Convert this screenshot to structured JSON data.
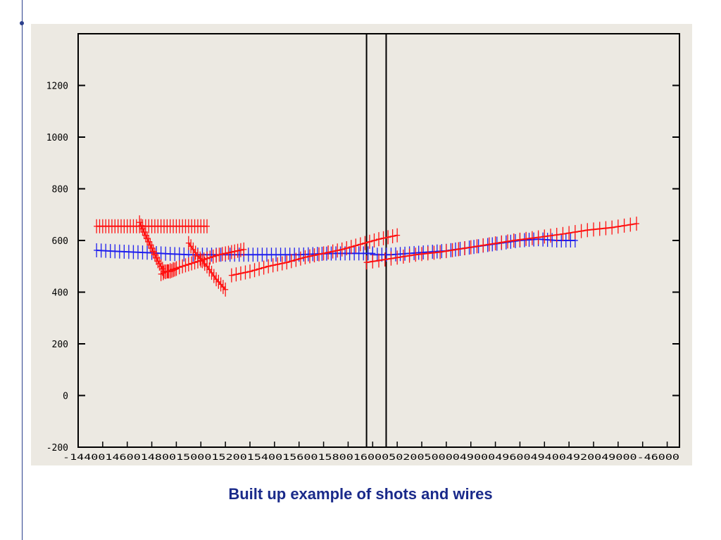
{
  "caption": "Built up example of shots and wires",
  "chart_data": {
    "type": "scatter",
    "title": "",
    "xlabel": "",
    "ylabel": "",
    "ylim": [
      -200,
      1400
    ],
    "xlim": [
      -14400,
      -4600
    ],
    "y_ticks": [
      1200,
      1000,
      800,
      600,
      400,
      200,
      0,
      -200
    ],
    "y_tick_labels": [
      "1200",
      "1000",
      "800",
      "600",
      "400",
      "200",
      "0",
      "-200"
    ],
    "x_ticks": [
      -14400,
      -14000,
      -13600,
      -13200,
      -12800,
      -12400,
      -12000,
      -11600,
      -11200,
      -10800,
      -10400,
      -10000,
      -9600,
      -9200,
      -8800,
      -8400,
      -8000,
      -7600,
      -7200,
      -6800,
      -6400,
      -6000,
      -5600,
      -5200,
      -4800
    ],
    "x_tick_label_text": "-14400146001480015000152001540015600158001600050200500004900049600494004920049000-46000",
    "vertical_lines_x": [
      -9700,
      -9380
    ],
    "grid": false,
    "legend": "none",
    "colors": {
      "red_series": "#ff1010",
      "blue_series": "#1e1eee",
      "axis": "#000000",
      "panel": "#ece9e2"
    },
    "series": [
      {
        "marker": "plus",
        "color": "#ff1010",
        "x": [
          -14100,
          -13900,
          -13700,
          -13500,
          -13300,
          -13100,
          -12900,
          -12700,
          -12500,
          -12300
        ],
        "y": [
          655,
          655,
          655,
          655,
          655,
          655,
          655,
          655,
          655,
          655
        ]
      },
      {
        "marker": "plus",
        "color": "#ff1010",
        "x": [
          -13400,
          -13300,
          -13200,
          -13100,
          -13000,
          -12900,
          -12800
        ],
        "y": [
          670,
          620,
          570,
          520,
          480,
          480,
          490
        ]
      },
      {
        "marker": "plus",
        "color": "#ff1010",
        "x": [
          -13050,
          -12900,
          -12700,
          -12500,
          -12300,
          -12100,
          -11900,
          -11700
        ],
        "y": [
          470,
          485,
          500,
          515,
          530,
          545,
          555,
          565
        ]
      },
      {
        "marker": "plus",
        "color": "#ff1010",
        "x": [
          -12600,
          -12450,
          -12300,
          -12150,
          -12000
        ],
        "y": [
          590,
          540,
          500,
          450,
          410
        ]
      },
      {
        "marker": "plus",
        "color": "#ff1010",
        "x": [
          -11900,
          -11600,
          -11300,
          -11000,
          -10700,
          -10400,
          -10100,
          -9800,
          -9500,
          -9200
        ],
        "y": [
          465,
          480,
          500,
          515,
          535,
          550,
          565,
          585,
          605,
          620
        ]
      },
      {
        "marker": "plus",
        "color": "#ff1010",
        "x": [
          -9700,
          -9300,
          -8900,
          -8500,
          -8100,
          -7700,
          -7300,
          -6900,
          -6500,
          -6100,
          -5700,
          -5300
        ],
        "y": [
          515,
          530,
          545,
          555,
          570,
          585,
          600,
          612,
          625,
          640,
          650,
          665
        ]
      },
      {
        "marker": "plus",
        "color": "#1e1eee",
        "x": [
          -14100,
          -13800,
          -13500,
          -13200,
          -12900,
          -12600,
          -12300,
          -12000,
          -11700,
          -11400,
          -11100,
          -10800,
          -10500,
          -10200,
          -9900,
          -9600
        ],
        "y": [
          562,
          558,
          555,
          552,
          548,
          545,
          545,
          545,
          545,
          545,
          545,
          545,
          548,
          550,
          550,
          550
        ]
      },
      {
        "marker": "plus",
        "color": "#1e1eee",
        "x": [
          -9600,
          -9300,
          -9000,
          -8700,
          -8400,
          -8100,
          -7800,
          -7500,
          -7200,
          -6900,
          -6600,
          -6300
        ],
        "y": [
          545,
          545,
          550,
          555,
          560,
          570,
          580,
          590,
          600,
          605,
          600,
          600
        ]
      }
    ]
  }
}
